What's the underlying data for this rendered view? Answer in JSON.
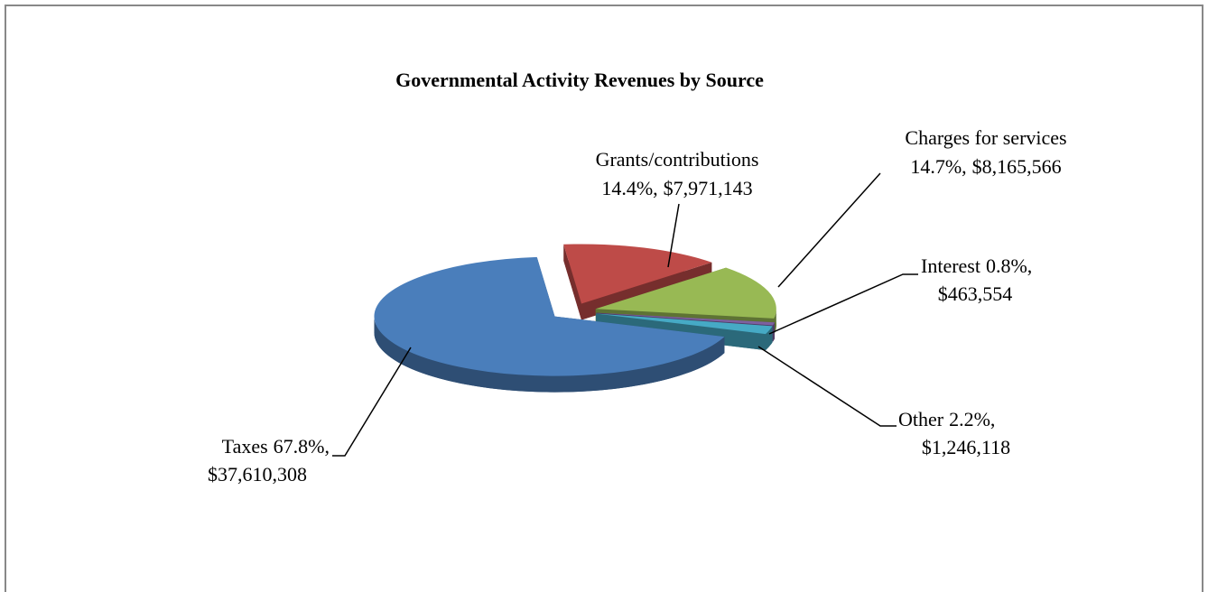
{
  "chart_data": {
    "type": "pie",
    "title": "Governmental Activity Revenues by Source",
    "categories": [
      "Taxes",
      "Grants/contributions",
      "Charges for services",
      "Interest",
      "Other"
    ],
    "values": [
      67.8,
      14.4,
      14.7,
      0.8,
      2.2
    ],
    "value_labels": [
      "67.8%,",
      "14.4%,",
      "14.7%,",
      "0.8%,",
      "2.2%,"
    ],
    "amounts": [
      37610308,
      7971143,
      8165566,
      463554,
      1246118
    ],
    "amount_labels": [
      "$37,610,308",
      "$7,971,143",
      "$8,165,566",
      "$463,554",
      "$1,246,118"
    ],
    "colors": [
      "#4a7ebb",
      "#be4b48",
      "#98b954",
      "#7d60a0",
      "#46aac5"
    ]
  }
}
